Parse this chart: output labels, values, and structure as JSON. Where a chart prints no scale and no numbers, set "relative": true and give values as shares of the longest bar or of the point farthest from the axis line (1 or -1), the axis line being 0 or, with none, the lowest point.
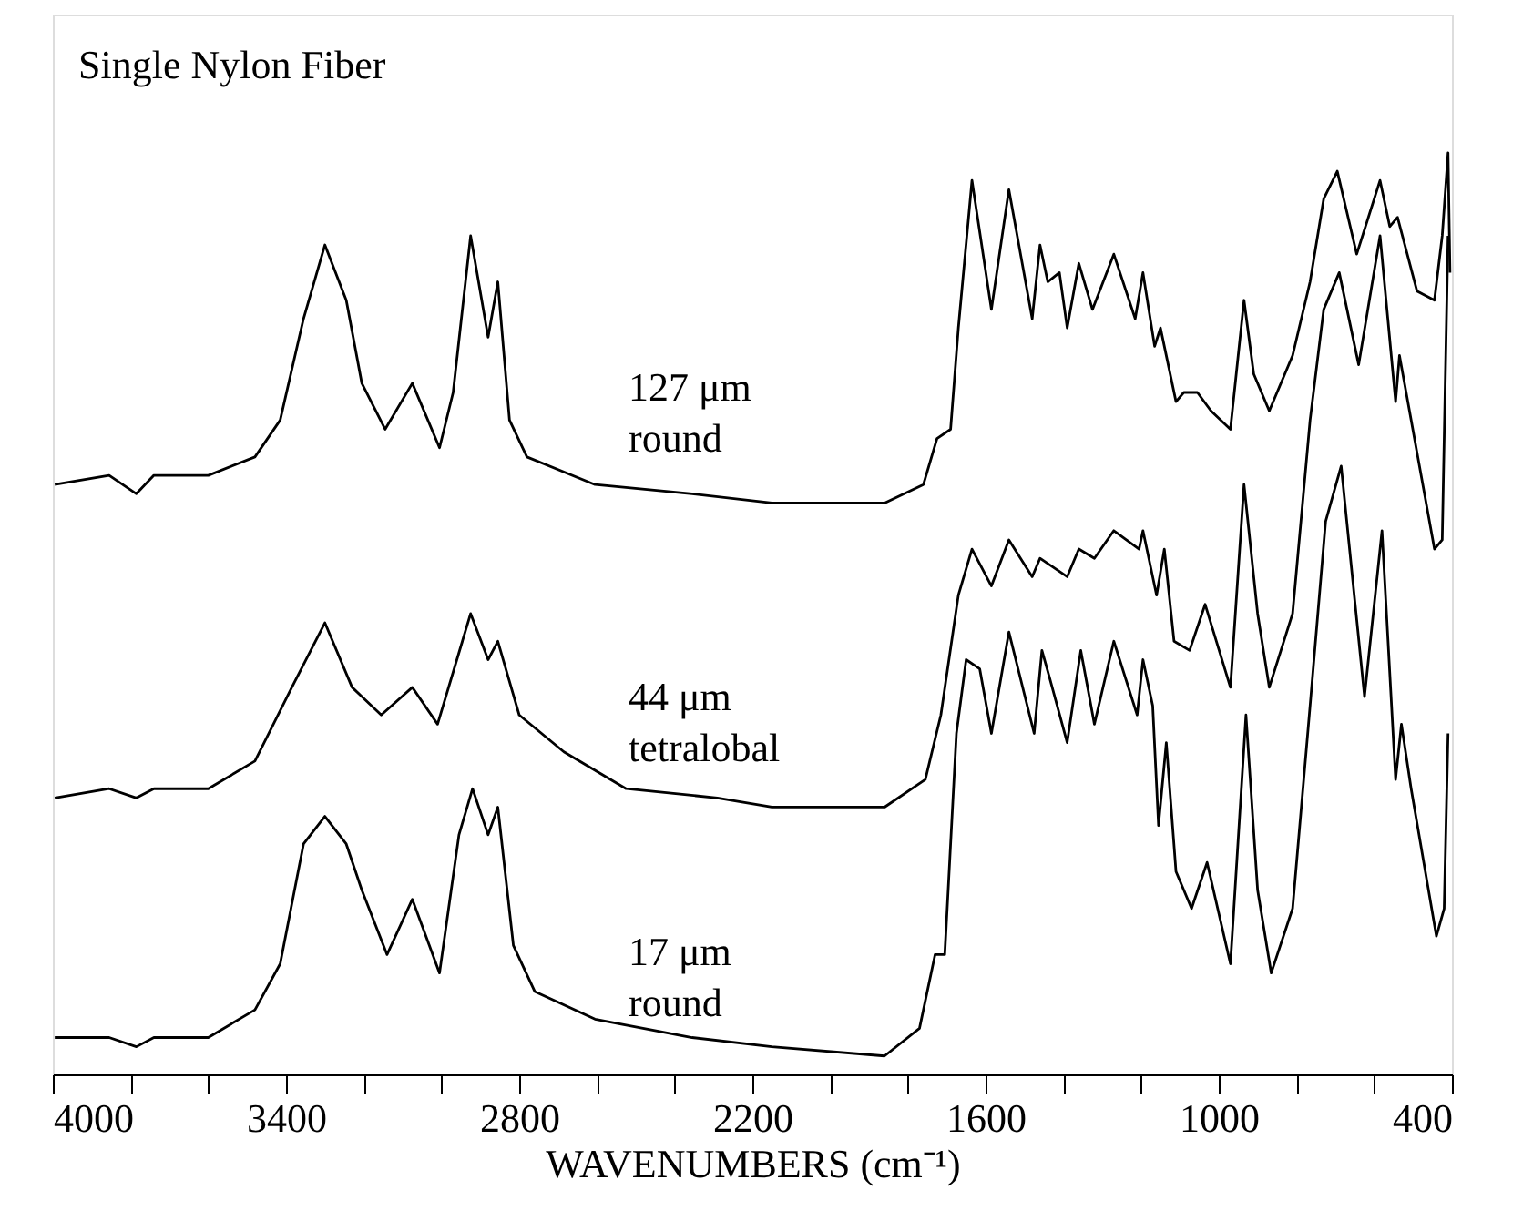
{
  "chart_data": {
    "type": "line",
    "title": "Single Nylon Fiber",
    "xlabel": "WAVENUMBERS (cm⁻¹)",
    "relative": true,
    "marker": "none",
    "line_style": "solid",
    "xlim": [
      4000,
      400
    ],
    "xticks": [
      4000,
      {
        "value": 3800,
        "label": null
      },
      {
        "value": 3600,
        "label": null
      },
      3400,
      {
        "value": 3200,
        "label": null
      },
      {
        "value": 3000,
        "label": null
      },
      2800,
      {
        "value": 2600,
        "label": null
      },
      {
        "value": 2400,
        "label": null
      },
      2200,
      {
        "value": 2000,
        "label": null
      },
      {
        "value": 1800,
        "label": null
      },
      1600,
      {
        "value": 1400,
        "label": null
      },
      {
        "value": 1200,
        "label": null
      },
      1000,
      {
        "value": 800,
        "label": null
      },
      {
        "value": 600,
        "label": null
      },
      400
    ],
    "series": [
      {
        "name": "127 μm\nround",
        "color": "#000000",
        "x": [
          3995,
          3855,
          3785,
          3740,
          3600,
          3480,
          3415,
          3355,
          3300,
          3245,
          3205,
          3145,
          3075,
          3005,
          2970,
          2925,
          2880,
          2855,
          2825,
          2780,
          2605,
          2355,
          2150,
          1860,
          1760,
          1725,
          1690,
          1670,
          1635,
          1585,
          1540,
          1480,
          1460,
          1440,
          1410,
          1390,
          1360,
          1325,
          1270,
          1215,
          1195,
          1165,
          1150,
          1110,
          1090,
          1055,
          1020,
          970,
          935,
          910,
          870,
          810,
          765,
          730,
          695,
          645,
          585,
          560,
          540,
          490,
          445,
          425,
          410,
          405
        ],
        "values": [
          0.64,
          0.65,
          0.63,
          0.65,
          0.65,
          0.67,
          0.71,
          0.82,
          0.9,
          0.84,
          0.75,
          0.7,
          0.75,
          0.68,
          0.74,
          0.91,
          0.8,
          0.86,
          0.71,
          0.67,
          0.64,
          0.63,
          0.62,
          0.62,
          0.64,
          0.69,
          0.7,
          0.81,
          0.97,
          0.83,
          0.96,
          0.82,
          0.9,
          0.86,
          0.87,
          0.81,
          0.88,
          0.83,
          0.89,
          0.82,
          0.87,
          0.79,
          0.81,
          0.73,
          0.74,
          0.74,
          0.72,
          0.7,
          0.84,
          0.76,
          0.72,
          0.78,
          0.86,
          0.95,
          0.98,
          0.89,
          0.97,
          0.92,
          0.93,
          0.85,
          0.84,
          0.91,
          1.0,
          0.87
        ]
      },
      {
        "name": "44 μm\ntetralobal",
        "color": "#000000",
        "x": [
          3995,
          3855,
          3785,
          3740,
          3600,
          3480,
          3385,
          3300,
          3230,
          3155,
          3075,
          3010,
          2925,
          2880,
          2855,
          2800,
          2685,
          2525,
          2290,
          2150,
          1860,
          1755,
          1715,
          1670,
          1635,
          1585,
          1540,
          1480,
          1460,
          1390,
          1360,
          1320,
          1270,
          1205,
          1195,
          1160,
          1140,
          1115,
          1075,
          1035,
          970,
          935,
          900,
          870,
          810,
          765,
          730,
          690,
          640,
          585,
          545,
          535,
          505,
          445,
          425,
          410
        ],
        "values": [
          0.3,
          0.31,
          0.3,
          0.31,
          0.31,
          0.34,
          0.42,
          0.49,
          0.42,
          0.39,
          0.42,
          0.38,
          0.5,
          0.45,
          0.47,
          0.39,
          0.35,
          0.31,
          0.3,
          0.29,
          0.29,
          0.32,
          0.39,
          0.52,
          0.57,
          0.53,
          0.58,
          0.54,
          0.56,
          0.54,
          0.57,
          0.56,
          0.59,
          0.57,
          0.59,
          0.52,
          0.57,
          0.47,
          0.46,
          0.51,
          0.42,
          0.64,
          0.5,
          0.42,
          0.5,
          0.71,
          0.83,
          0.87,
          0.77,
          0.91,
          0.73,
          0.78,
          0.71,
          0.57,
          0.58,
          0.91
        ]
      },
      {
        "name": "17 μm\nround",
        "color": "#000000",
        "x": [
          3995,
          3855,
          3785,
          3740,
          3600,
          3480,
          3415,
          3355,
          3300,
          3245,
          3205,
          3140,
          3075,
          3005,
          2955,
          2920,
          2880,
          2855,
          2815,
          2760,
          2605,
          2355,
          2150,
          1860,
          1770,
          1730,
          1705,
          1675,
          1650,
          1615,
          1585,
          1540,
          1475,
          1455,
          1435,
          1390,
          1355,
          1320,
          1270,
          1210,
          1195,
          1170,
          1155,
          1135,
          1110,
          1070,
          1030,
          970,
          930,
          900,
          865,
          810,
          765,
          725,
          685,
          625,
          580,
          545,
          530,
          505,
          440,
          420,
          410
        ],
        "values": [
          0.04,
          0.04,
          0.03,
          0.04,
          0.04,
          0.07,
          0.12,
          0.25,
          0.28,
          0.25,
          0.2,
          0.13,
          0.19,
          0.11,
          0.26,
          0.31,
          0.26,
          0.29,
          0.14,
          0.09,
          0.06,
          0.04,
          0.03,
          0.02,
          0.05,
          0.13,
          0.13,
          0.37,
          0.45,
          0.44,
          0.37,
          0.48,
          0.37,
          0.46,
          0.43,
          0.36,
          0.46,
          0.38,
          0.47,
          0.39,
          0.45,
          0.4,
          0.27,
          0.36,
          0.22,
          0.18,
          0.23,
          0.12,
          0.39,
          0.2,
          0.11,
          0.18,
          0.4,
          0.6,
          0.66,
          0.41,
          0.59,
          0.32,
          0.38,
          0.31,
          0.15,
          0.18,
          0.37
        ]
      }
    ]
  }
}
